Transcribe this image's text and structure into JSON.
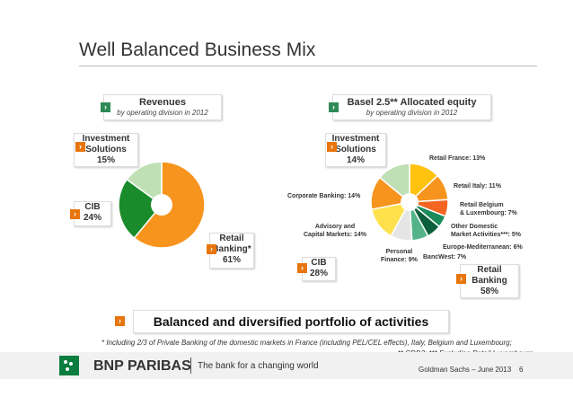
{
  "slide": {
    "title": "Well Balanced Business Mix",
    "page_number": "6",
    "event": "Goldman Sachs – June 2013"
  },
  "left": {
    "header_title": "Revenues",
    "header_sub": "by operating division in 2012",
    "labels": {
      "investment": [
        "Investment",
        "Solutions",
        "15%"
      ],
      "cib": [
        "CIB",
        "24%"
      ],
      "retail": [
        "Retail",
        "Banking*",
        "61%"
      ]
    }
  },
  "right": {
    "header_title": "Basel 2.5** Allocated equity",
    "header_sub": "by operating division in 2012",
    "labels": {
      "investment": [
        "Investment",
        "Solutions",
        "14%"
      ],
      "cib": [
        "CIB",
        "28%"
      ],
      "retail": [
        "Retail",
        "Banking",
        "58%"
      ]
    }
  },
  "banner": "Balanced and diversified portfolio of activities",
  "footnotes": {
    "line1": "* Including 2/3 of Private Banking of the domestic markets in France (including PEL/CEL effects), Italy, Belgium and Luxembourg;",
    "line2": "** CRD3; *** Excluding Retail Luxembourg"
  },
  "footer": {
    "brand": "BNP PARIBAS",
    "tagline": "The bank for a changing world"
  },
  "colors": {
    "orange": "#f7941d",
    "green": "#1a8b2a",
    "light_green": "#bfe0b4",
    "accent": "#e8750c"
  },
  "chart_data": [
    {
      "type": "pie",
      "title": "Revenues",
      "subtitle": "by operating division in 2012",
      "series": [
        {
          "name": "Retail Banking*",
          "value": 61,
          "color": "#f7941d"
        },
        {
          "name": "CIB",
          "value": 24,
          "color": "#1a8b2a"
        },
        {
          "name": "Investment Solutions",
          "value": 15,
          "color": "#bfe0b4"
        }
      ]
    },
    {
      "type": "pie",
      "title": "Basel 2.5** Allocated equity",
      "subtitle": "by operating division in 2012",
      "series": [
        {
          "name": "Retail France: 13%",
          "value": 13,
          "color": "#ffc20e"
        },
        {
          "name": "Retail Italy: 11%",
          "value": 11,
          "color": "#f7941d"
        },
        {
          "name": "Retail Belgium & Luxembourg: 7%",
          "value": 7,
          "color": "#f26522"
        },
        {
          "name": "Other Domestic Market Activities***: 5%",
          "value": 5,
          "color": "#1a8b5a"
        },
        {
          "name": "Europe-Mediterranean: 6%",
          "value": 6,
          "color": "#0b5e3a"
        },
        {
          "name": "BancWest: 7%",
          "value": 7,
          "color": "#55b38a"
        },
        {
          "name": "Personal Finance: 9%",
          "value": 9,
          "color": "#e5e5e5"
        },
        {
          "name": "Advisory and Capital Markets: 14%",
          "value": 14,
          "color": "#ffe14d"
        },
        {
          "name": "Corporate Banking: 14%",
          "value": 14,
          "color": "#f7941d"
        },
        {
          "name": "Investment Solutions 14%",
          "value": 14,
          "color": "#bfe0b4"
        }
      ]
    }
  ]
}
